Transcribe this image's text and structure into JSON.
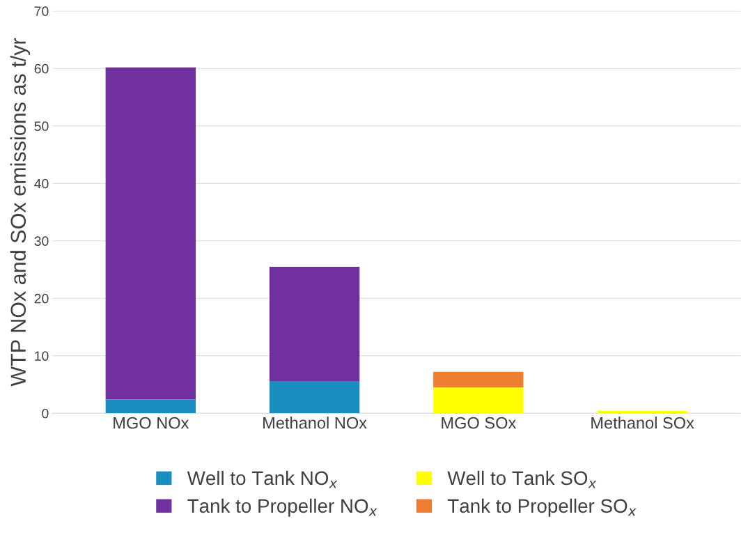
{
  "chart_data": {
    "type": "bar",
    "stacked": true,
    "ylabel": "WTP NOx and SOx emissions as t/yr",
    "categories": [
      "MGO NOx",
      "Methanol NOx",
      "MGO SOx",
      "Methanol SOx"
    ],
    "series": [
      {
        "name": "Well to Tank NO$_{x}$",
        "color": "#1a8fbf",
        "values": [
          2.4,
          5.6,
          null,
          null
        ]
      },
      {
        "name": "Tank to Propeller NO$_{x}$",
        "color": "#7030a0",
        "values": [
          57.8,
          19.9,
          null,
          null
        ]
      },
      {
        "name": "Well to Tank SO$_{x}$",
        "color": "#ffff00",
        "values": [
          null,
          null,
          4.5,
          0.4
        ]
      },
      {
        "name": "Tank to Propeller SO$_{x}$",
        "color": "#ed7d31",
        "values": [
          null,
          null,
          2.7,
          null
        ]
      }
    ],
    "ylim": [
      0,
      70
    ],
    "yticks": [
      0,
      10,
      20,
      30,
      40,
      50,
      60,
      70
    ],
    "grid": "y",
    "legend": "bottom"
  }
}
